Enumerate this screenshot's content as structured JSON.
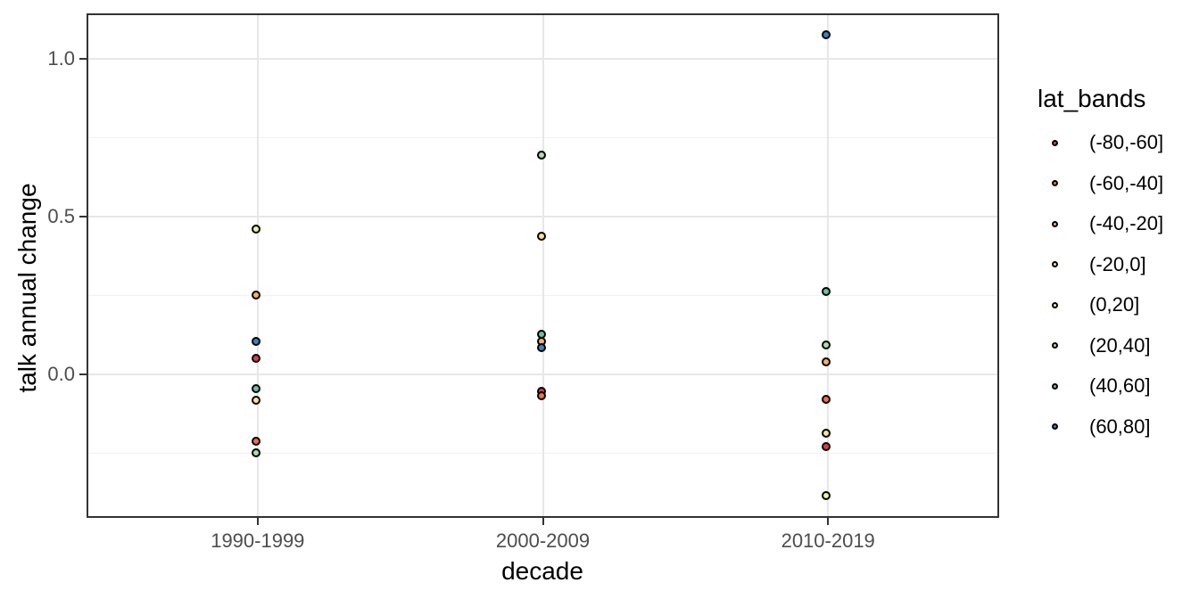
{
  "chart_data": {
    "type": "scatter",
    "title": "",
    "xlabel": "decade",
    "ylabel": "talk annual change",
    "legend_title": "lat_bands",
    "legend_position": "right",
    "grid": true,
    "categories": [
      "1990-1999",
      "2000-2009",
      "2010-2019"
    ],
    "y_axis": {
      "range": [
        -0.45,
        1.14
      ],
      "ticks": [
        {
          "value": 1.0,
          "label": "1.0"
        },
        {
          "value": 0.5,
          "label": "0.5"
        },
        {
          "value": 0.0,
          "label": "0.0"
        }
      ],
      "minor_ticks": [
        0.75,
        0.25,
        -0.25
      ]
    },
    "series": [
      {
        "name": "(-80,-60]",
        "color": "#d53e4f",
        "values": [
          0.045,
          -0.058,
          -0.235
        ]
      },
      {
        "name": "(-60,-40]",
        "color": "#f46d43",
        "values": [
          -0.216,
          -0.073,
          -0.085
        ]
      },
      {
        "name": "(-40,-20]",
        "color": "#fdae61",
        "values": [
          0.245,
          0.1,
          0.035
        ]
      },
      {
        "name": "(-20,0]",
        "color": "#fee08b",
        "values": [
          -0.088,
          0.432,
          -0.191
        ]
      },
      {
        "name": "(0,20]",
        "color": "#e6f598",
        "values": [
          0.455,
          null,
          -0.39
        ]
      },
      {
        "name": "(20,40]",
        "color": "#abdda4",
        "values": [
          -0.254,
          0.689,
          0.087
        ]
      },
      {
        "name": "(40,60]",
        "color": "#66c2a5",
        "values": [
          -0.051,
          0.12,
          0.258
        ]
      },
      {
        "name": "(60,80]",
        "color": "#3288bd",
        "values": [
          0.1,
          0.078,
          1.07
        ]
      }
    ],
    "point_outline_color": "#000000"
  }
}
